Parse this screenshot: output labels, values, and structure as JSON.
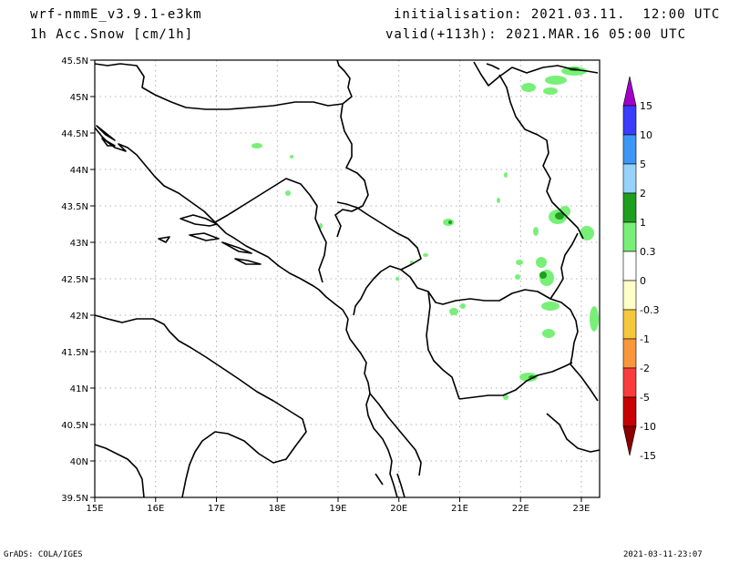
{
  "header": {
    "model": "wrf-nmmE_v3.9.1-e3km",
    "variable": "1h Acc.Snow [cm/1h]",
    "initialisation": "initialisation: 2021.03.11.  12:00 UTC",
    "valid": "valid(+113h): 2021.MAR.16 05:00 UTC"
  },
  "footer": {
    "left": "GrADS: COLA/IGES",
    "right": "2021-03-11-23:07"
  },
  "map": {
    "lon_range": [
      15,
      23.3
    ],
    "lat_range": [
      39.5,
      45.5
    ],
    "lat_ticks": [
      "39.5N",
      "40N",
      "40.5N",
      "41N",
      "41.5N",
      "42N",
      "42.5N",
      "43N",
      "43.5N",
      "44N",
      "44.5N",
      "45N",
      "45.5N"
    ],
    "lon_ticks": [
      "15E",
      "16E",
      "17E",
      "18E",
      "19E",
      "20E",
      "21E",
      "22E",
      "23E"
    ]
  },
  "colorbar": {
    "labels": [
      "15",
      "10",
      "5",
      "2",
      "1",
      "0.3",
      "0",
      "-0.3",
      "-1",
      "-2",
      "-5",
      "-10",
      "-15"
    ],
    "colors": [
      "#a000c8",
      "#3c3cff",
      "#3c96f5",
      "#96d2fa",
      "#1ea01e",
      "#78f078",
      "#ffffff",
      "#ffffc8",
      "#f5c83c",
      "#fa963c",
      "#fa3c3c",
      "#c80000",
      "#8c0000"
    ]
  }
}
